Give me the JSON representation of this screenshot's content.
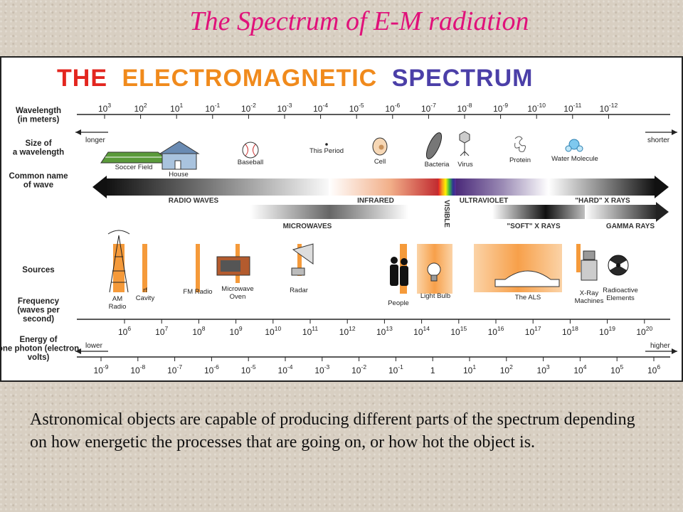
{
  "slide_title": "The Spectrum of E-M radiation",
  "banner": {
    "words": [
      {
        "text": "THE",
        "color": "#e3261f"
      },
      {
        "text": "ELECTROMAGNETIC",
        "color": "#f08a1c"
      },
      {
        "text": "SPECTRUM",
        "color": "#4b3fa8"
      }
    ]
  },
  "rows": {
    "wavelength": "Wavelength (in meters)",
    "size": "Size of a wavelength",
    "common": "Common name of wave",
    "sources": "Sources",
    "frequency": "Frequency (waves per second)",
    "energy": "Energy of one photon (electron volts)"
  },
  "wavelength_scale": {
    "base": "10",
    "exponents": [
      "3",
      "2",
      "1",
      "-1",
      "-2",
      "-3",
      "-4",
      "-5",
      "-6",
      "-7",
      "-8",
      "-9",
      "-10",
      "-11",
      "-12"
    ],
    "longer_label": "longer",
    "shorter_label": "shorter"
  },
  "size_objects": [
    "Soccer Field",
    "House",
    "Baseball",
    "This Period",
    "Cell",
    "Bacteria",
    "Virus",
    "Protein",
    "Water Molecule"
  ],
  "wave_names": {
    "radio": "RADIO WAVES",
    "infrared": "INFRARED",
    "visible": "VISIBLE",
    "ultraviolet": "ULTRAVIOLET",
    "hard_xray": "\"HARD\" X RAYS",
    "microwaves": "MICROWAVES",
    "soft_xray": "\"SOFT\" X RAYS",
    "gamma": "GAMMA RAYS"
  },
  "sources": [
    "AM Radio",
    "rf Cavity",
    "FM Radio",
    "Microwave Oven",
    "Radar",
    "People",
    "Light Bulb",
    "The ALS",
    "X-Ray Machines",
    "Radioactive Elements"
  ],
  "frequency_scale": {
    "base": "10",
    "exponents": [
      "6",
      "7",
      "8",
      "9",
      "10",
      "11",
      "12",
      "13",
      "14",
      "15",
      "16",
      "17",
      "18",
      "19",
      "20"
    ]
  },
  "energy_scale": {
    "labels": [
      {
        "base": "10",
        "exp": "-9"
      },
      {
        "base": "10",
        "exp": "-8"
      },
      {
        "base": "10",
        "exp": "-7"
      },
      {
        "base": "10",
        "exp": "-6"
      },
      {
        "base": "10",
        "exp": "-5"
      },
      {
        "base": "10",
        "exp": "-4"
      },
      {
        "base": "10",
        "exp": "-3"
      },
      {
        "base": "10",
        "exp": "-2"
      },
      {
        "base": "10",
        "exp": "-1"
      },
      {
        "base": "1",
        "exp": ""
      },
      {
        "base": "10",
        "exp": "1"
      },
      {
        "base": "10",
        "exp": "2"
      },
      {
        "base": "10",
        "exp": "3"
      },
      {
        "base": "10",
        "exp": "4"
      },
      {
        "base": "10",
        "exp": "5"
      },
      {
        "base": "10",
        "exp": "6"
      }
    ],
    "lower_label": "lower",
    "higher_label": "higher"
  },
  "caption": "Astronomical objects are capable of producing different parts of the spectrum depending on how energetic the processes that are going on, or how hot the object is.",
  "colors": {
    "title": "#e0117a",
    "source_bar": "#f59a3a",
    "ink": "#222222"
  }
}
